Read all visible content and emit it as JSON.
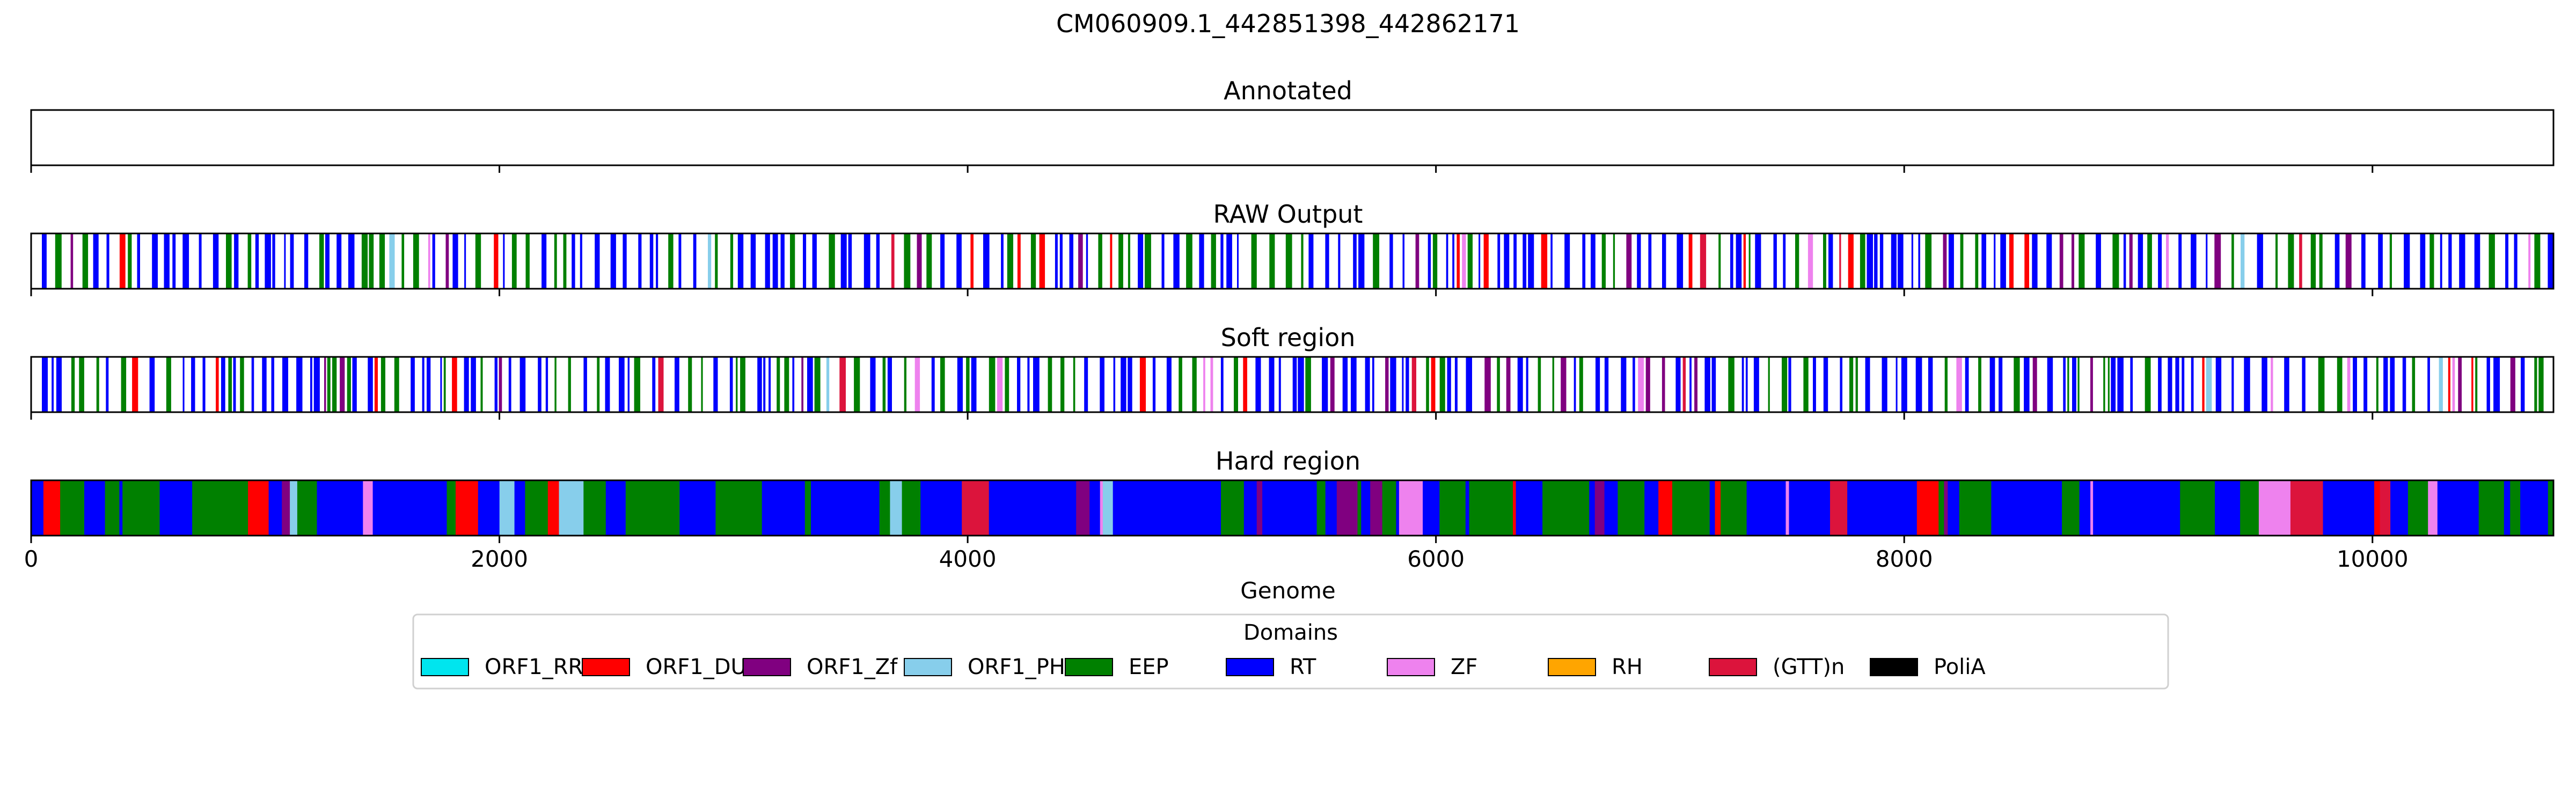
{
  "chart_data": {
    "type": "track",
    "title": "CM060909.1_442851398_442862171",
    "xlabel": "Genome",
    "xlim": [
      0,
      10773
    ],
    "xticks": [
      0,
      2000,
      4000,
      6000,
      8000,
      10000
    ],
    "xtick_labels": [
      "0",
      "2000",
      "4000",
      "6000",
      "8000",
      "10000"
    ],
    "panels": [
      {
        "title": "Annotated",
        "fill": "none"
      },
      {
        "title": "RAW Output",
        "fill": "sparse"
      },
      {
        "title": "Soft region",
        "fill": "sparse"
      },
      {
        "title": "Hard region",
        "fill": "dense"
      }
    ],
    "legend": {
      "title": "Domains",
      "placement": "bottom-center",
      "entries": [
        {
          "label": "ORF1_RRM",
          "color": "#00e5ee"
        },
        {
          "label": "ORF1_DUF",
          "color": "#ff0000"
        },
        {
          "label": "ORF1_Zf",
          "color": "#800080"
        },
        {
          "label": "ORF1_PHA",
          "color": "#87ceeb"
        },
        {
          "label": "EEP",
          "color": "#008000"
        },
        {
          "label": "RT",
          "color": "#0000ff"
        },
        {
          "label": "ZF",
          "color": "#ee82ee"
        },
        {
          "label": "RH",
          "color": "#ffa500"
        },
        {
          "label": "(GTT)n",
          "color": "#dc143c"
        },
        {
          "label": "PoliA",
          "color": "#000000"
        }
      ]
    }
  }
}
